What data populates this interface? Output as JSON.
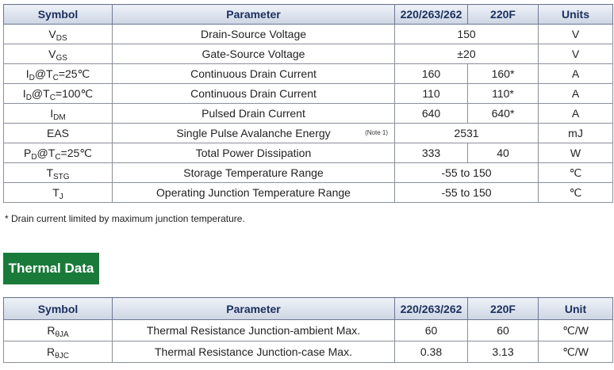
{
  "abs_table": {
    "headers": [
      "Symbol",
      "Parameter",
      "220/263/262",
      "220F",
      "Units"
    ],
    "rows": [
      {
        "sym": "V",
        "sub": "DS",
        "suffix": "",
        "param": "Drain-Source Voltage",
        "merged": "150",
        "unit": "V"
      },
      {
        "sym": "V",
        "sub": "GS",
        "suffix": "",
        "param": "Gate-Source Voltage",
        "merged": "±20",
        "unit": "V"
      },
      {
        "sym": "I",
        "sub": "D",
        "suffix": "@T",
        "sub2": "C",
        "suffix2": "=25℃",
        "param": "Continuous Drain Current",
        "v1": "160",
        "v2": "160*",
        "unit": "A"
      },
      {
        "sym": "I",
        "sub": "D",
        "suffix": "@T",
        "sub2": "C",
        "suffix2": "=100℃",
        "param": "Continuous Drain Current",
        "v1": "110",
        "v2": "110*",
        "unit": "A"
      },
      {
        "sym": "I",
        "sub": "DM",
        "suffix": "",
        "param": "Pulsed Drain Current",
        "v1": "640",
        "v2": "640*",
        "unit": "A"
      },
      {
        "sym": "EAS",
        "param": "Single Pulse Avalanche Energy",
        "note": "(Note 1)",
        "merged": "2531",
        "unit": "mJ"
      },
      {
        "sym": "P",
        "sub": "D",
        "suffix": "@T",
        "sub2": "C",
        "suffix2": "=25℃",
        "param": "Total Power Dissipation",
        "v1": "333",
        "v2": "40",
        "unit": "W"
      },
      {
        "sym": "T",
        "sub": "STG",
        "suffix": "",
        "param": "Storage Temperature Range",
        "merged": "-55 to 150",
        "unit": "℃"
      },
      {
        "sym": "T",
        "sub": "J",
        "suffix": "",
        "param": "Operating Junction Temperature Range",
        "merged": "-55 to 150",
        "unit": "℃"
      }
    ]
  },
  "footnote": "* Drain current limited by maximum junction temperature.",
  "thermal_title": "Thermal Data",
  "thermal_table": {
    "headers": [
      "Symbol",
      "Parameter",
      "220/263/262",
      "220F",
      "Unit"
    ],
    "rows": [
      {
        "sym": "R",
        "sub": "θJA",
        "param": "Thermal Resistance Junction-ambient Max.",
        "v1": "60",
        "v2": "60",
        "unit": "℃/W"
      },
      {
        "sym": "R",
        "sub": "θJC",
        "param": "Thermal Resistance Junction-case Max.",
        "v1": "0.38",
        "v2": "3.13",
        "unit": "℃/W"
      }
    ]
  }
}
